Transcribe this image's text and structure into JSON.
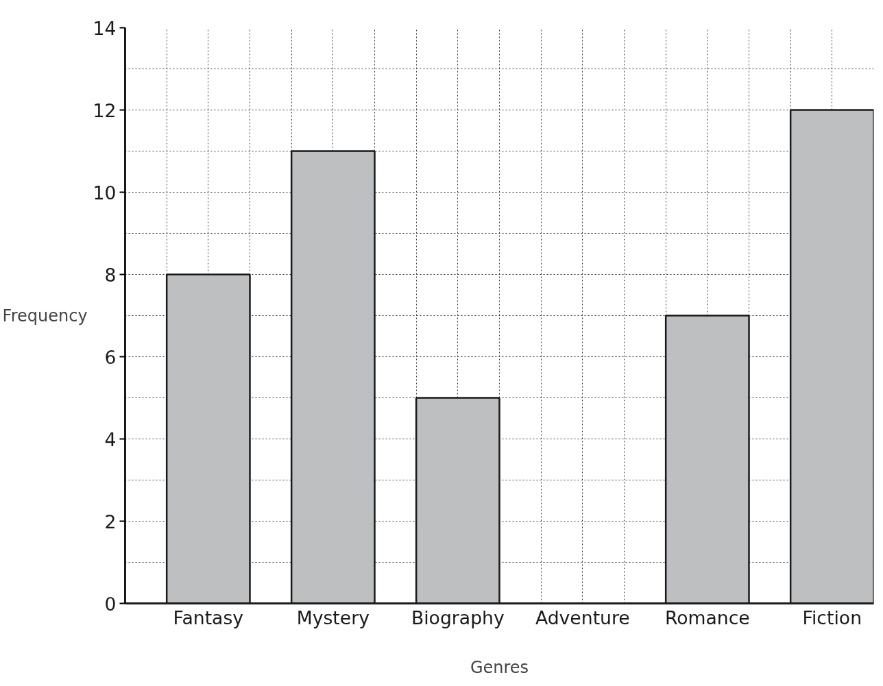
{
  "chart_data": {
    "type": "bar",
    "xlabel": "Genres",
    "ylabel": "Frequency",
    "categories": [
      "Fantasy",
      "Mystery",
      "Biography",
      "Adventure",
      "Romance",
      "Fiction"
    ],
    "values": [
      8,
      11,
      5,
      0,
      7,
      12
    ],
    "color": "#bebfc0",
    "ylim": [
      0,
      14
    ],
    "yticks": [
      0,
      {
        "value": 1,
        "label": null
      },
      2,
      {
        "value": 3,
        "label": null
      },
      4,
      {
        "value": 5,
        "label": null
      },
      6,
      {
        "value": 7,
        "label": null
      },
      8,
      {
        "value": 9,
        "label": null
      },
      10,
      {
        "value": 11,
        "label": null
      },
      12,
      {
        "value": 13,
        "label": null
      },
      14
    ],
    "grid": true
  }
}
